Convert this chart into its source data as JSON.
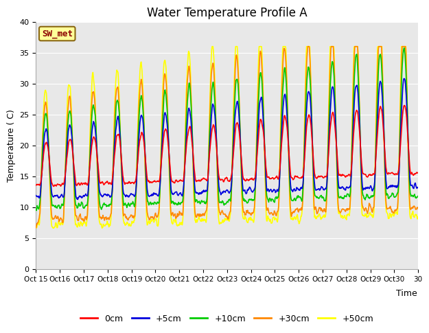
{
  "title": "Water Temperature Profile A",
  "xlabel": "Time",
  "ylabel": "Temperature ( C)",
  "ylim": [
    0,
    40
  ],
  "yticks": [
    0,
    5,
    10,
    15,
    20,
    25,
    30,
    35,
    40
  ],
  "xtick_labels": [
    "Oct 15",
    "Oct 16",
    "Oct 17",
    "Oct 18",
    "Oct 19",
    "Oct 20",
    "Oct 21",
    "Oct 22",
    "Oct 23",
    "Oct 24",
    "Oct 25",
    "Oct 26",
    "Oct 27",
    "Oct 28",
    "Oct 29",
    "Oct 30"
  ],
  "legend_labels": [
    "0cm",
    "+5cm",
    "+10cm",
    "+30cm",
    "+50cm"
  ],
  "legend_colors": [
    "#ff0000",
    "#0000dd",
    "#00cc00",
    "#ff8800",
    "#ffff00"
  ],
  "annotation_text": "SW_met",
  "annotation_color": "#8b0000",
  "annotation_bg": "#ffff99",
  "annotation_edge": "#8b6914",
  "plot_bg": "#e8e8e8",
  "fig_bg": "#ffffff",
  "grid_color": "#ffffff",
  "title_fontsize": 12,
  "axis_fontsize": 9,
  "tick_fontsize": 8
}
